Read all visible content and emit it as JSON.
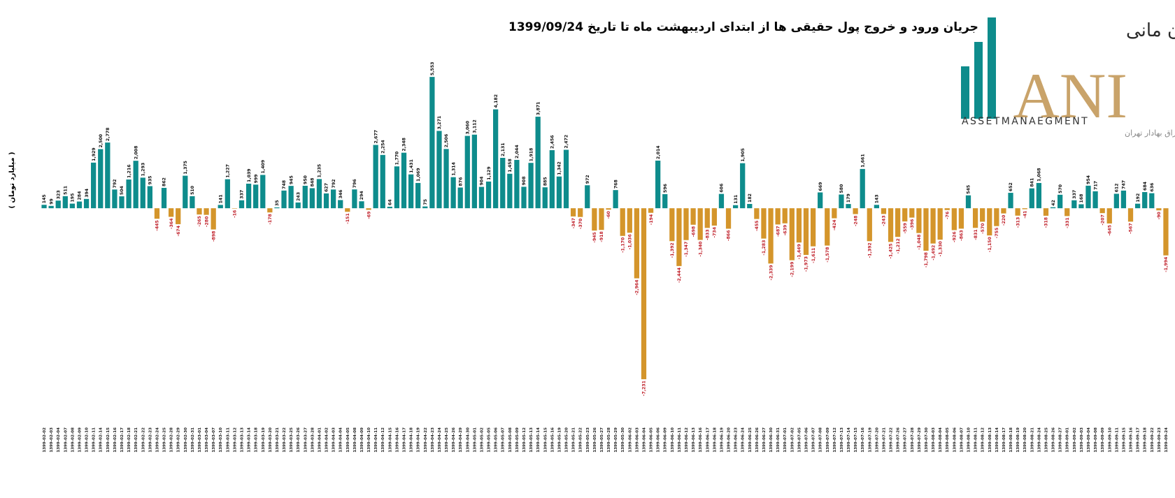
{
  "chart_data": {
    "type": "bar",
    "title": "جریان ورود و خروج پول حقیقی ها از ابتدای اردیبهشت ماه تا تاریخ 1399/09/24",
    "y_label": "( میلیارد تومان )",
    "positive_color": "#0e8c8c",
    "negative_color": "#d4952b",
    "positive_label_color": "#111111",
    "negative_label_color": "#c0202a",
    "ylim": [
      -8000,
      6000
    ],
    "categories": [
      "1399-02-02",
      "1399-02-03",
      "1399-02-04",
      "1399-02-07",
      "1399-02-08",
      "1399-02-09",
      "1399-02-10",
      "1399-02-11",
      "1399-02-14",
      "1399-02-15",
      "1399-02-16",
      "1399-02-17",
      "1399-02-18",
      "1399-02-21",
      "1399-02-22",
      "1399-02-23",
      "1399-02-24",
      "1399-02-25",
      "1399-02-28",
      "1399-02-29",
      "1399-02-30",
      "1399-02-31",
      "1399-03-01",
      "1399-03-04",
      "1399-03-07",
      "1399-03-10",
      "1399-03-11",
      "1399-03-12",
      "1399-03-13",
      "1399-03-14",
      "1399-03-18",
      "1399-03-19",
      "1399-03-20",
      "1399-03-21",
      "1399-03-22",
      "1399-03-25",
      "1399-03-26",
      "1399-03-27",
      "1399-03-28",
      "1399-04-01",
      "1399-04-02",
      "1399-04-03",
      "1399-04-04",
      "1399-04-05",
      "1399-04-08",
      "1399-04-09",
      "1399-04-10",
      "1399-04-11",
      "1399-04-12",
      "1399-04-15",
      "1399-04-16",
      "1399-04-17",
      "1399-04-18",
      "1399-04-19",
      "1399-04-22",
      "1399-04-23",
      "1399-04-24",
      "1399-04-25",
      "1399-04-26",
      "1399-04-29",
      "1399-04-30",
      "1399-05-01",
      "1399-05-02",
      "1399-05-05",
      "1399-05-06",
      "1399-05-07",
      "1399-05-08",
      "1399-05-09",
      "1399-05-12",
      "1399-05-13",
      "1399-05-14",
      "1399-05-15",
      "1399-05-16",
      "1399-05-19",
      "1399-05-20",
      "1399-05-21",
      "1399-05-22",
      "1399-05-23",
      "1399-05-26",
      "1399-05-27",
      "1399-05-28",
      "1399-05-29",
      "1399-05-30",
      "1399-06-02",
      "1399-06-03",
      "1399-06-04",
      "1399-06-05",
      "1399-06-06",
      "1399-06-09",
      "1399-06-10",
      "1399-06-11",
      "1399-06-12",
      "1399-06-13",
      "1399-06-16",
      "1399-06-17",
      "1399-06-18",
      "1399-06-19",
      "1399-06-20",
      "1399-06-23",
      "1399-06-24",
      "1399-06-25",
      "1399-06-26",
      "1399-06-27",
      "1399-06-30",
      "1399-06-31",
      "1399-07-01",
      "1399-07-02",
      "1399-07-05",
      "1399-07-06",
      "1399-07-07",
      "1399-07-08",
      "1399-07-09",
      "1399-07-12",
      "1399-07-13",
      "1399-07-14",
      "1399-07-15",
      "1399-07-16",
      "1399-07-19",
      "1399-07-20",
      "1399-07-21",
      "1399-07-22",
      "1399-07-26",
      "1399-07-27",
      "1399-07-28",
      "1399-07-29",
      "1399-07-30",
      "1399-08-03",
      "1399-08-04",
      "1399-08-05",
      "1399-08-06",
      "1399-08-07",
      "1399-08-10",
      "1399-08-11",
      "1399-08-12",
      "1399-08-13",
      "1399-08-14",
      "1399-08-17",
      "1399-08-18",
      "1399-08-19",
      "1399-08-20",
      "1399-08-21",
      "1399-08-24",
      "1399-08-25",
      "1399-08-26",
      "1399-08-27",
      "1399-09-01",
      "1399-09-02",
      "1399-09-03",
      "1399-09-04",
      "1399-09-08",
      "1399-09-09",
      "1399-09-10",
      "1399-09-11",
      "1399-09-15",
      "1399-09-16",
      "1399-09-17",
      "1399-09-18",
      "1399-09-22",
      "1399-09-23",
      "1399-09-24"
    ],
    "values": [
      145,
      99,
      323,
      511,
      195,
      284,
      394,
      1929,
      2500,
      2778,
      792,
      504,
      1216,
      2008,
      1293,
      935,
      -445,
      862,
      -364,
      -674,
      1375,
      510,
      -265,
      -280,
      -898,
      141,
      1227,
      -16,
      337,
      1039,
      999,
      1409,
      -178,
      35,
      748,
      945,
      243,
      950,
      848,
      1235,
      627,
      792,
      346,
      -151,
      796,
      294,
      -69,
      2677,
      2254,
      64,
      1770,
      2348,
      1431,
      1069,
      75,
      5553,
      3271,
      2506,
      1314,
      876,
      3060,
      3112,
      904,
      1129,
      4182,
      2131,
      1458,
      2044,
      908,
      1918,
      3871,
      885,
      2456,
      1342,
      2472,
      -347,
      -370,
      972,
      -945,
      -918,
      -60,
      768,
      -1170,
      -1036,
      -2964,
      -7231,
      -194,
      2014,
      596,
      -1392,
      -2444,
      -1347,
      -698,
      -1340,
      -833,
      -734,
      606,
      -866,
      131,
      1905,
      182,
      -455,
      -1283,
      -2339,
      -687,
      -639,
      -2199,
      -1449,
      -1973,
      -1611,
      669,
      -1578,
      -424,
      580,
      179,
      -248,
      1661,
      -1392,
      143,
      -243,
      -1425,
      -1212,
      -559,
      -396,
      -1048,
      -1798,
      -1492,
      -1330,
      -76,
      -926,
      -863,
      545,
      -831,
      -570,
      -1150,
      -755,
      -220,
      652,
      -313,
      -41,
      841,
      1068,
      -318,
      42,
      570,
      -331,
      337,
      168,
      954,
      717,
      -207,
      -645,
      612,
      747,
      -567,
      192,
      684,
      636,
      -90,
      -1994
    ],
    "value_labels": [
      "145",
      "99",
      "323",
      "511",
      "195",
      "284",
      "394",
      "1,929",
      "2,500",
      "2,778",
      "792",
      "504",
      "1,216",
      "2,008",
      "1,293",
      "935",
      "-445",
      "862",
      "-364",
      "-674",
      "1,375",
      "510",
      "-265",
      "-280",
      "-898",
      "141",
      "1,227",
      "-16",
      "337",
      "1,039",
      "999",
      "1,409",
      "-178",
      "35",
      "748",
      "945",
      "243",
      "950",
      "848",
      "1,235",
      "627",
      "792",
      "346",
      "-151",
      "796",
      "294",
      "-69",
      "2,677",
      "2,254",
      "64",
      "1,770",
      "2,348",
      "1,431",
      "1,069",
      "75",
      "5,553",
      "3,271",
      "2,506",
      "1,314",
      "876",
      "3,060",
      "3,112",
      "904",
      "1,129",
      "4,182",
      "2,131",
      "1,458",
      "2,044",
      "908",
      "1,918",
      "3,871",
      "885",
      "2,456",
      "1,342",
      "2,472",
      "-347",
      "-370",
      "972",
      "-945",
      "-918",
      "-60",
      "768",
      "-1,170",
      "-1,036",
      "-2,964",
      "-7,231",
      "-194",
      "2,014",
      "596",
      "-1,392",
      "-2,444",
      "-1,347",
      "-698",
      "-1,340",
      "-833",
      "-734",
      "606",
      "-866",
      "131",
      "1,905",
      "182",
      "-455",
      "-1,283",
      "-2,339",
      "-687",
      "-639",
      "-2,199",
      "-1,449",
      "-1,973",
      "-1,611",
      "669",
      "-1,578",
      "-424",
      "580",
      "179",
      "-248",
      "1,661",
      "-1,392",
      "143",
      "-243",
      "-1,425",
      "-1,212",
      "-559",
      "-396",
      "-1,048",
      "-1,798",
      "-1,492",
      "-1,330",
      "-76",
      "-926",
      "-863",
      "545",
      "-831",
      "-570",
      "-1,150",
      "-755",
      "-220",
      "652",
      "-313",
      "-41",
      "841",
      "1,068",
      "-318",
      "42",
      "570",
      "-331",
      "337",
      "168",
      "954",
      "717",
      "-207",
      "-645",
      "612",
      "747",
      "-567",
      "192",
      "684",
      "636",
      "-90",
      "-1,994"
    ]
  },
  "logo": {
    "name": "سبدگردان مانی",
    "mark": "ANI",
    "subtitle": "ASSETMANAEGMENT",
    "note": "تحت نظارت سازمان بورس و اوراق بهادار تهران"
  }
}
